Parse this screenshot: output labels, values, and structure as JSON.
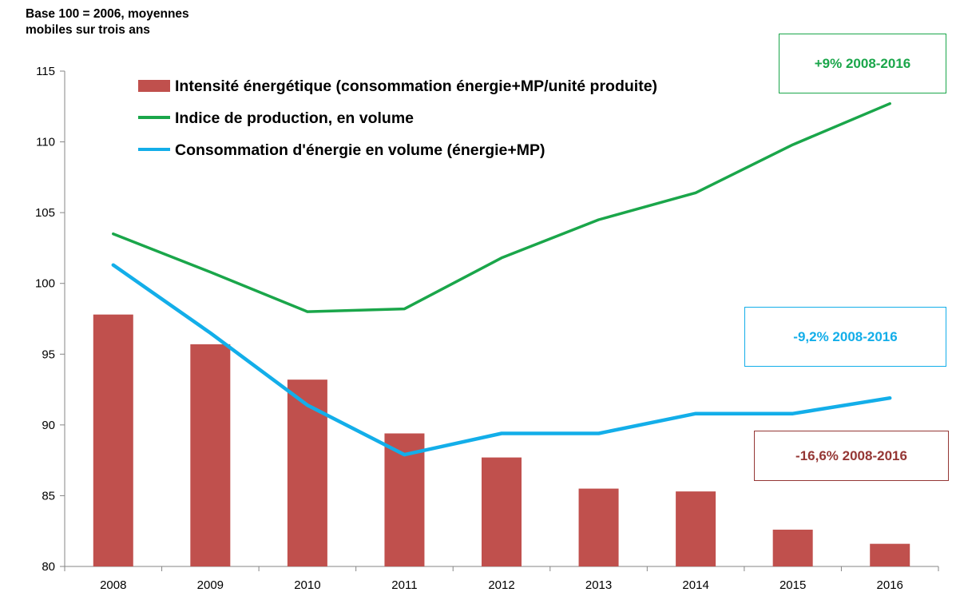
{
  "chart_data": {
    "type": "bar",
    "ylabel": "Base 100 = 2006, moyennes mobiles sur trois ans",
    "ylim": [
      80,
      115
    ],
    "yticks": [
      80,
      85,
      90,
      95,
      100,
      105,
      110,
      115
    ],
    "categories": [
      "2008",
      "2009",
      "2010",
      "2011",
      "2012",
      "2013",
      "2014",
      "2015",
      "2016"
    ],
    "grid": false,
    "legend_position": "top",
    "series": [
      {
        "name": "Intensité énergétique (consommation énergie+MP/unité produite)",
        "type": "bar",
        "color": "#c0504d",
        "values": [
          97.8,
          95.7,
          93.2,
          89.4,
          87.7,
          85.5,
          85.3,
          82.6,
          81.6
        ]
      },
      {
        "name": "Indice de production, en volume",
        "type": "line",
        "color": "#1aa64a",
        "values": [
          103.5,
          100.8,
          98.0,
          98.2,
          101.8,
          104.5,
          106.4,
          109.8,
          112.7
        ]
      },
      {
        "name": "Consommation d'énergie en volume (énergie+MP)",
        "type": "line",
        "color": "#13aee9",
        "values": [
          101.3,
          96.5,
          91.4,
          87.9,
          89.4,
          89.4,
          90.8,
          90.8,
          91.9
        ]
      }
    ],
    "annotations": [
      {
        "text": "+9% 2008-2016",
        "color": "#1aa64a"
      },
      {
        "text": "-9,2% 2008-2016",
        "color": "#13aee9"
      },
      {
        "text": "-16,6% 2008-2016",
        "color": "#953735"
      }
    ]
  }
}
